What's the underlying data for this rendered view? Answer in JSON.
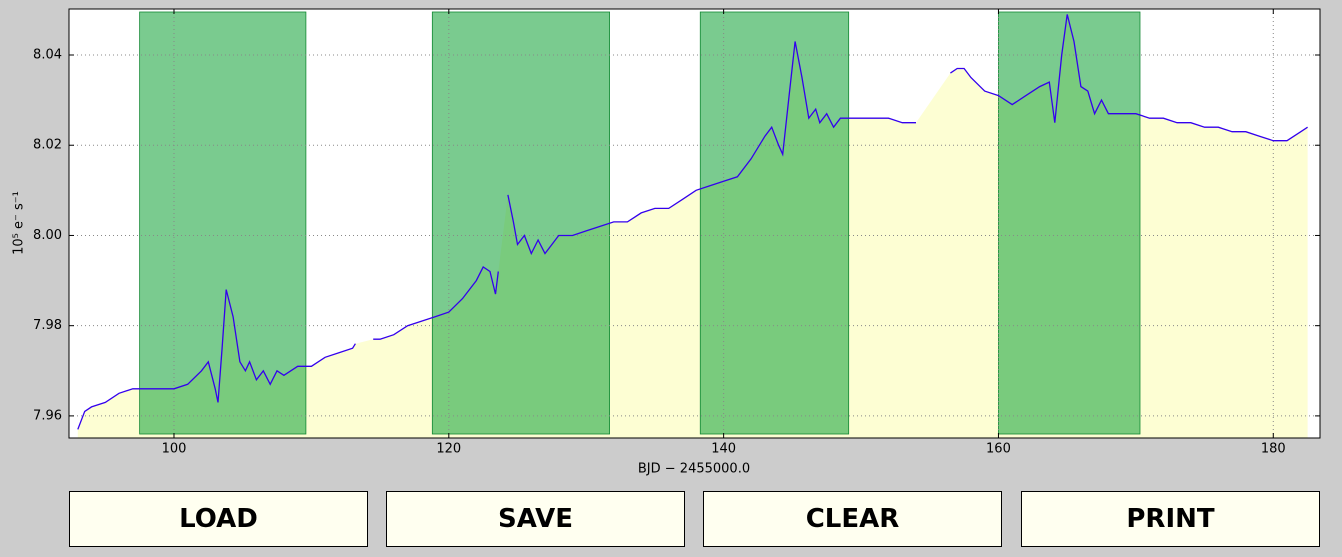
{
  "chart_data": {
    "type": "line",
    "xlabel": "BJD − 2455000.0",
    "ylabel": "10⁵ e⁻ s⁻¹",
    "x": [
      93,
      93.5,
      94,
      95,
      96,
      97,
      98,
      99,
      100,
      101,
      102,
      102.5,
      103,
      103.2,
      103.5,
      103.8,
      104.3,
      104.8,
      105.2,
      105.5,
      106,
      106.5,
      107,
      107.5,
      108,
      108.5,
      109,
      110,
      111,
      112,
      113,
      113.2,
      113.8,
      114.5,
      115,
      116,
      117,
      118,
      119,
      120,
      121,
      122,
      122.5,
      123,
      123.4,
      123.6,
      124,
      124.3,
      124.7,
      125,
      125.5,
      126,
      126.5,
      127,
      127.5,
      128,
      129,
      130,
      131,
      132,
      133,
      134,
      135,
      136,
      137,
      138,
      139,
      140,
      141,
      142,
      143,
      143.5,
      144,
      144.3,
      144.8,
      145.2,
      145.7,
      146.2,
      146.7,
      147,
      147.5,
      148,
      148.5,
      149,
      150,
      151,
      152,
      153,
      154,
      155,
      156.5,
      157,
      157.5,
      158,
      159,
      160,
      161,
      162,
      163,
      163.7,
      164.1,
      164.6,
      165,
      165.5,
      166,
      166.5,
      167,
      167.5,
      168,
      169,
      170,
      171,
      172,
      173,
      174,
      175,
      176,
      177,
      178,
      179,
      180,
      181,
      182,
      182.5
    ],
    "values": [
      7.957,
      7.961,
      7.962,
      7.963,
      7.965,
      7.966,
      7.966,
      7.966,
      7.966,
      7.967,
      7.97,
      7.972,
      7.966,
      7.963,
      7.975,
      7.988,
      7.982,
      7.972,
      7.97,
      7.972,
      7.968,
      7.97,
      7.967,
      7.97,
      7.969,
      7.97,
      7.971,
      7.971,
      7.973,
      7.974,
      7.975,
      7.976,
      null,
      7.977,
      7.977,
      7.978,
      7.98,
      7.981,
      7.982,
      7.983,
      7.986,
      7.99,
      7.993,
      7.992,
      7.987,
      7.992,
      null,
      8.009,
      8.003,
      7.998,
      8.0,
      7.996,
      7.999,
      7.996,
      7.998,
      8.0,
      8.0,
      8.001,
      8.002,
      8.003,
      8.003,
      8.005,
      8.006,
      8.006,
      8.008,
      8.01,
      8.011,
      8.012,
      8.013,
      8.017,
      8.022,
      8.024,
      8.02,
      8.018,
      8.032,
      8.043,
      8.035,
      8.026,
      8.028,
      8.025,
      8.027,
      8.024,
      8.026,
      8.026,
      8.026,
      8.026,
      8.026,
      8.025,
      8.025,
      null,
      8.036,
      8.037,
      8.037,
      8.035,
      8.032,
      8.031,
      8.029,
      8.031,
      8.033,
      8.034,
      8.025,
      8.04,
      8.049,
      8.043,
      8.033,
      8.032,
      8.027,
      8.03,
      8.027,
      8.027,
      8.027,
      8.026,
      8.026,
      8.025,
      8.025,
      8.024,
      8.024,
      8.023,
      8.023,
      8.022,
      8.021,
      8.021,
      8.023,
      8.024
    ],
    "color": "#3300ee",
    "fill_color": "#fdfed3",
    "highlight_spans": [
      [
        97.5,
        109.6
      ],
      [
        118.8,
        131.7
      ],
      [
        138.3,
        149.1
      ],
      [
        160,
        170.3
      ]
    ],
    "highlight_color": "#21a845",
    "xlim": [
      92.36,
      183.4
    ],
    "ylim": [
      7.9551,
      8.0502
    ],
    "xticks": [
      100,
      120,
      140,
      160,
      180
    ],
    "yticks": [
      7.96,
      7.98,
      {
        "value": 8,
        "label": "8.00"
      },
      8.02,
      8.04
    ],
    "grid": true
  },
  "buttons": [
    "LOAD",
    "SAVE",
    "CLEAR",
    "PRINT"
  ]
}
